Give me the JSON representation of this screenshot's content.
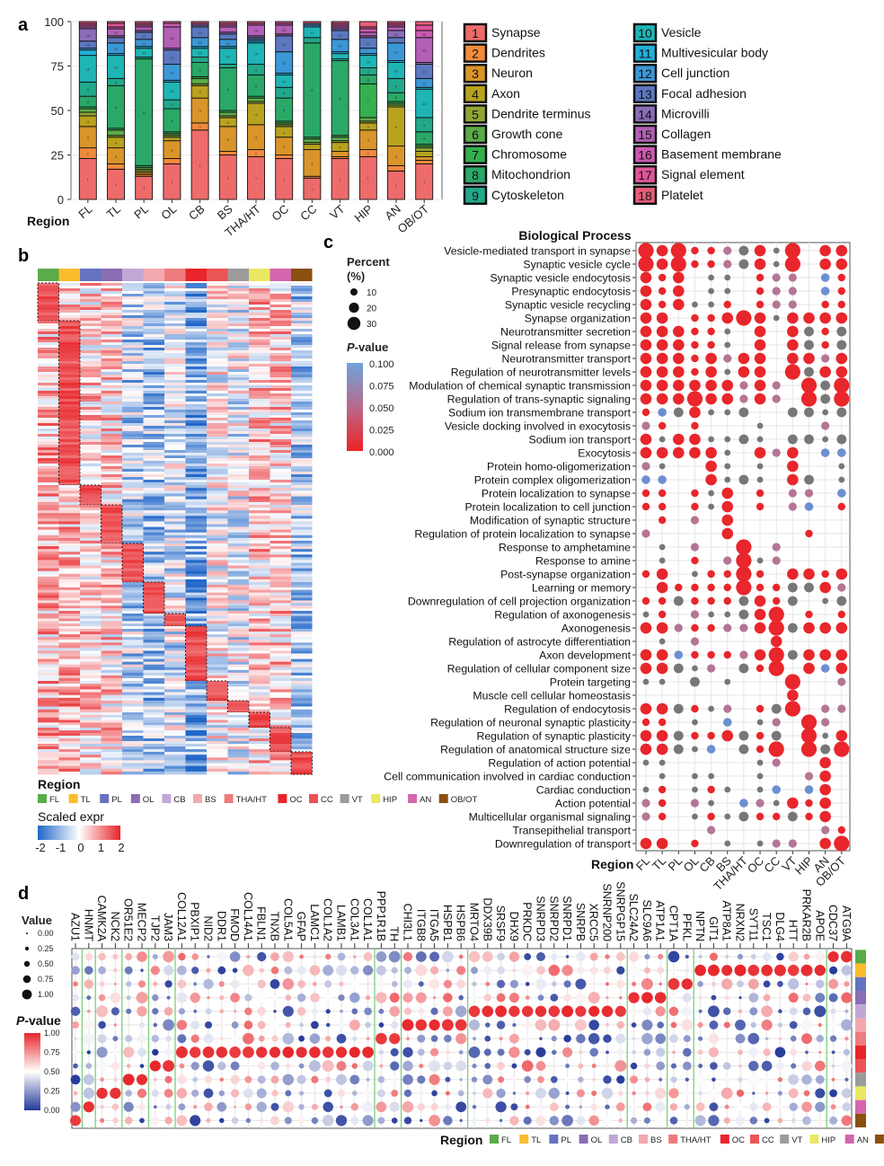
{
  "panel_labels": {
    "a": "a",
    "b": "b",
    "c": "c",
    "d": "d"
  },
  "regions": [
    "FL",
    "TL",
    "PL",
    "OL",
    "CB",
    "BS",
    "THA/HT",
    "OC",
    "CC",
    "VT",
    "HIP",
    "AN",
    "OB/OT"
  ],
  "region_colors": [
    "#5aab4a",
    "#fbbc2c",
    "#6673c0",
    "#8a6db5",
    "#c0a8d6",
    "#f2a8ae",
    "#ee7b7c",
    "#e8252a",
    "#ea5455",
    "#9b9b9b",
    "#e8e862",
    "#d466ae",
    "#8b4f10"
  ],
  "chart_data": [
    {
      "panel": "a",
      "type": "bar",
      "stacked": true,
      "xlabel": "Region",
      "ylabel": "",
      "ylim": [
        0,
        100
      ],
      "yticks": [
        0,
        25,
        50,
        75,
        100
      ],
      "categories": [
        "FL",
        "TL",
        "PL",
        "OL",
        "CB",
        "BS",
        "THA/HT",
        "OC",
        "CC",
        "VT",
        "HIP",
        "AN",
        "OB/OT"
      ],
      "legend": [
        {
          "id": "1",
          "name": "Synapse",
          "color": "#ee6b6b"
        },
        {
          "id": "2",
          "name": "Dendrites",
          "color": "#f28a3c"
        },
        {
          "id": "3",
          "name": "Neuron",
          "color": "#d9952a"
        },
        {
          "id": "4",
          "name": "Axon",
          "color": "#b8a21e"
        },
        {
          "id": "5",
          "name": "Dendrite terminus",
          "color": "#8fa534"
        },
        {
          "id": "6",
          "name": "Growth cone",
          "color": "#5aab48"
        },
        {
          "id": "7",
          "name": "Chromosome",
          "color": "#34b04f"
        },
        {
          "id": "8",
          "name": "Mitochondrion",
          "color": "#2aa868"
        },
        {
          "id": "9",
          "name": "Cytoskeleton",
          "color": "#22a88a"
        },
        {
          "id": "10",
          "name": "Vesicle",
          "color": "#1fb5b5"
        },
        {
          "id": "11",
          "name": "Multivesicular body",
          "color": "#1fb0d8"
        },
        {
          "id": "12",
          "name": "Cell junction",
          "color": "#3b97d6"
        },
        {
          "id": "13",
          "name": "Focal adhesion",
          "color": "#5b78c0"
        },
        {
          "id": "14",
          "name": "Microvilli",
          "color": "#8a6cb8"
        },
        {
          "id": "15",
          "name": "Collagen",
          "color": "#b25fb5"
        },
        {
          "id": "16",
          "name": "Basement membrane",
          "color": "#cc5ab0"
        },
        {
          "id": "17",
          "name": "Signal element",
          "color": "#e0559a"
        },
        {
          "id": "18",
          "name": "Platelet",
          "color": "#e85c7a"
        }
      ],
      "values_by_region": [
        [
          23,
          6,
          12,
          6,
          2,
          2,
          1,
          6,
          8,
          15,
          3,
          1,
          4,
          7,
          1,
          1,
          1,
          1
        ],
        [
          17,
          3,
          9,
          6,
          1,
          3,
          1,
          24,
          4,
          13,
          1,
          6,
          3,
          1,
          4,
          1,
          2,
          1
        ],
        [
          13,
          1,
          1,
          1,
          1,
          1,
          1,
          60,
          1,
          5,
          1,
          4,
          4,
          1,
          2,
          1,
          1,
          1
        ],
        [
          20,
          3,
          10,
          2,
          1,
          1,
          1,
          13,
          5,
          10,
          1,
          9,
          8,
          1,
          12,
          2,
          1,
          0
        ],
        [
          39,
          4,
          14,
          7,
          1,
          3,
          1,
          8,
          3,
          5,
          1,
          5,
          6,
          1,
          1,
          0,
          0,
          1
        ],
        [
          25,
          2,
          14,
          5,
          1,
          2,
          1,
          24,
          2,
          9,
          1,
          4,
          3,
          1,
          3,
          1,
          1,
          1
        ],
        [
          24,
          4,
          14,
          12,
          1,
          2,
          1,
          12,
          6,
          12,
          1,
          1,
          1,
          1,
          6,
          1,
          0,
          1
        ],
        [
          23,
          2,
          10,
          6,
          1,
          1,
          1,
          13,
          6,
          7,
          1,
          12,
          9,
          1,
          5,
          1,
          1,
          0
        ],
        [
          12,
          1,
          15,
          3,
          1,
          2,
          1,
          53,
          3,
          6,
          0,
          1,
          1,
          0,
          0,
          0,
          0,
          1
        ],
        [
          23,
          1,
          3,
          5,
          1,
          2,
          1,
          42,
          1,
          3,
          1,
          7,
          5,
          1,
          1,
          1,
          1,
          1
        ],
        [
          24,
          4,
          11,
          4,
          1,
          2,
          19,
          5,
          4,
          7,
          1,
          3,
          6,
          1,
          2,
          2,
          1,
          3
        ],
        [
          16,
          3,
          11,
          22,
          1,
          1,
          1,
          5,
          8,
          9,
          1,
          10,
          3,
          4,
          2,
          1,
          1,
          1
        ],
        [
          20,
          2,
          2,
          3,
          2,
          1,
          1,
          7,
          8,
          16,
          1,
          5,
          8,
          1,
          14,
          4,
          3,
          2
        ]
      ]
    },
    {
      "panel": "b",
      "type": "heatmap",
      "legend_title": "Region",
      "colorbar_title": "Scaled expr",
      "colorbar_ticks": [
        "-2",
        "-1",
        "0",
        "1",
        "2"
      ],
      "colorbar_range": [
        -2,
        2
      ],
      "module_relative_sizes": [
        42,
        183,
        22,
        43,
        43,
        35,
        14,
        61,
        22,
        13,
        17,
        27,
        25
      ],
      "column_mean_expr": [
        0.6,
        0.7,
        0.4,
        0.4,
        -0.6,
        -0.8,
        -0.4,
        -1.1,
        0.0,
        -0.2,
        0.5,
        0.5,
        -0.7
      ]
    },
    {
      "panel": "c",
      "type": "scatter",
      "title": "Biological Process",
      "xlabel": "Region",
      "size_legend": {
        "title_line1": "Percent",
        "title_line2": "(%)",
        "ticks": [
          "10",
          "20",
          "30"
        ]
      },
      "color_legend": {
        "title_italic": "P",
        "title_rest": "-value",
        "ticks": [
          "0.100",
          "0.075",
          "0.050",
          "0.025",
          "0.000"
        ]
      },
      "cell_code": {
        ".": "none",
        "a": "p<0.025, ~10%",
        "b": "p<0.025, ~20%",
        "c": "p<0.025, ~30%",
        "x": "p~0.1, ~5%",
        "y": "p~0.1, ~15%",
        "p": "p~0.06",
        "u": "p~0.09"
      },
      "terms": [
        {
          "name": "Vesicle-mediated transport in synapse",
          "cells": "cbcaapybxc.bb"
        },
        {
          "name": "Synaptic vesicle cycle",
          "cells": "cbcaapybxc.bb"
        },
        {
          "name": "Synaptic vesicle endocytosis",
          "cells": "bab.xx.app.ua"
        },
        {
          "name": "Presynaptic endocytosis",
          "cells": "bab.xx.app.ua"
        },
        {
          "name": "Synaptic vesicle recycling",
          "cells": "babxxa.app.aa"
        },
        {
          "name": "Synapse organization",
          "cells": "bb.aabcbxbbbb"
        },
        {
          "name": "Neurotransmitter secretion",
          "cells": "bbbaax.b.byay"
        },
        {
          "name": "Signal release from synapse",
          "cells": "bbbaax.b.byay"
        },
        {
          "name": "Neurotransmitter transport",
          "cells": "bbbabpbb.bbpb"
        },
        {
          "name": "Regulation of neurotransmitter levels",
          "cells": "bbbabxbb.cybb"
        },
        {
          "name": "Modulation of chemical synaptic transmission",
          "cells": "bbbbbbpbp.cyc"
        },
        {
          "name": "Regulation of trans-synaptic signaling",
          "cells": "bbbcbbpbp.cyc"
        },
        {
          "name": "Sodium ion transmembrane transport",
          "cells": "auybxxy..yyxy"
        },
        {
          "name": "Vesicle docking involved in exocytosis",
          "cells": "pa.a...x...p."
        },
        {
          "name": "Sodium ion transport",
          "cells": "bxbbxxyx.yyxy"
        },
        {
          "name": "Exocytosis",
          "cells": "bbbbbx.bpb.uu"
        },
        {
          "name": "Protein homo-oligomerization",
          "cells": "px..bx.x.b..x"
        },
        {
          "name": "Protein complex oligomerization",
          "cells": "uu..bxyx.by.x"
        },
        {
          "name": "Protein localization to synapse",
          "cells": "aa.axb.a.pp.u"
        },
        {
          "name": "Protein localization to cell junction",
          "cells": "aa.axb.a.pu.a"
        },
        {
          "name": "Modification of synaptic structure",
          "cells": ".a.p.b......."
        },
        {
          "name": "Regulation of protein localization to synapse",
          "cells": "p....b....a.."
        },
        {
          "name": "Response to amphetamine",
          "cells": ".x.p..c.p...."
        },
        {
          "name": "Response to amine",
          "cells": ".x.a.pcxp...."
        },
        {
          "name": "Post-synapse organization",
          "cells": "ab.xaaca.bbab"
        },
        {
          "name": "Learning or memory",
          "cells": ".baaaacaayybp"
        },
        {
          "name": "Downregulation of cell projection organization",
          "cells": "aayaaaybay.xy"
        },
        {
          "name": "Regulation of axonogenesis",
          "cells": "xa.pxxybc.a.a"
        },
        {
          "name": "Axonogenesis",
          "cells": "bbpaappbcybbb"
        },
        {
          "name": "Regulation of astrocyte differentiation",
          "cells": ".x.p....b...."
        },
        {
          "name": "Axon development",
          "cells": "bbuaaapbcybbb"
        },
        {
          "name": "Regulation of cellular component size",
          "cells": "bbyxp.yac.bub"
        },
        {
          "name": "Protein targeting",
          "cells": "xx.y.x...c..p"
        },
        {
          "name": "Muscle cell cellular homeostasis",
          "cells": ".........b..."
        },
        {
          "name": "Regulation of endocytosis",
          "cells": "bbyaxp.ayc.pp"
        },
        {
          "name": "Regulation of neuronal synaptic plasticity",
          "cells": "aa.x.u.xp.cp."
        },
        {
          "name": "Regulation of synaptic plasticity",
          "cells": "bbyaabyay.cxb"
        },
        {
          "name": "Regulation of anatomical structure size",
          "cells": "bbyxu.yac.cyc"
        },
        {
          "name": "Regulation of action potential",
          "cells": "xx.....xp..b."
        },
        {
          "name": "Cell communication involved in cardiac conduction",
          "cells": ".x.xx..x..pb."
        },
        {
          "name": "Cardiac conduction",
          "cells": "xa.xax.xu.ub."
        },
        {
          "name": "Action potential",
          "cells": "pa.px.upxbab."
        },
        {
          "name": "Multicellular organismal signaling",
          "cells": "pa.xaxyaayab."
        },
        {
          "name": "Transepithelial transport",
          "cells": "....p......pa"
        },
        {
          "name": "Downregulation of transport",
          "cells": "bb.a.x.xpp.bc"
        }
      ]
    },
    {
      "panel": "d",
      "type": "scatter",
      "xlabel": "Region",
      "value_legend": {
        "title": "Value",
        "ticks": [
          "0.00",
          "0.25",
          "0.50",
          "0.75",
          "1.00"
        ]
      },
      "pvalue_legend": {
        "title_italic": "P",
        "title_rest": "-value",
        "ticks": [
          "1.00",
          "0.75",
          "0.50",
          "0.25",
          "0.00"
        ]
      },
      "gene_groups": [
        {
          "region": "OB/OT",
          "genes": [
            "AZU1"
          ]
        },
        {
          "region": "AN",
          "genes": [
            "HNMT"
          ]
        },
        {
          "region": "HIP",
          "genes": [
            "CAMK2A",
            "NCK2"
          ]
        },
        {
          "region": "VT",
          "genes": [
            "OR51E2",
            "MECP2"
          ]
        },
        {
          "region": "CC",
          "genes": [
            "TJP2",
            "JAM3"
          ]
        },
        {
          "region": "OC",
          "genes": [
            "COL12A1",
            "PBXIP1",
            "NID2",
            "DDR1",
            "FMOD",
            "COL14A1",
            "FBLN1",
            "TNXB",
            "COL5A1",
            "GFAP",
            "LAMC1",
            "COL1A2",
            "LAMB1",
            "COL3A1",
            "COL1A1"
          ]
        },
        {
          "region": "THA/HT",
          "genes": [
            "PPP1R1B",
            "TH"
          ]
        },
        {
          "region": "BS",
          "genes": [
            "CHI3L1",
            "ITGB8",
            "ITGA5",
            "HSPB1",
            "HSPB6"
          ]
        },
        {
          "region": "CB",
          "genes": [
            "MRTO4",
            "DDX39B",
            "SRSF9",
            "DHX9",
            "PRKDC",
            "SNRPD3",
            "SNRPD2",
            "SNRPD1",
            "SNRPB",
            "XRCC5",
            "SNRNP200",
            "SNRPGP15"
          ]
        },
        {
          "region": "OL",
          "genes": [
            "SLC24A2",
            "SLC9A6",
            "ATP1A1"
          ]
        },
        {
          "region": "PL",
          "genes": [
            "CPT1A",
            "PFKL"
          ]
        },
        {
          "region": "TL",
          "genes": [
            "NPTN",
            "GIT1",
            "ATP8A1",
            "NRXN2",
            "SYT11",
            "TSC1",
            "DLG4",
            "HTT",
            "PRKAR2B",
            "APOE"
          ]
        },
        {
          "region": "FL",
          "genes": [
            "CDC37",
            "ATG9A"
          ]
        }
      ]
    }
  ]
}
